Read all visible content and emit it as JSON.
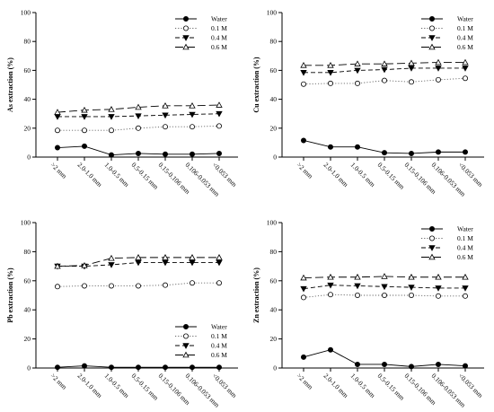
{
  "chart_data": [
    {
      "type": "line",
      "panel": "top-left",
      "ylabel": "As extraction (%)",
      "xlabel": "",
      "ylim": [
        0,
        100
      ],
      "yticks": [
        "0",
        "20",
        "40",
        "60",
        "80",
        "100"
      ],
      "categories": [
        ">2 mm",
        "2.0-1.0 mm",
        "1.0-0.5 mm",
        "0.5-0.15 mm",
        "0.15-0.106 mm",
        "0.106-0.053 mm",
        "<0.053 mm"
      ],
      "legend_position": "top-right",
      "series": [
        {
          "name": "Water",
          "marker": "filled-circle",
          "line": "solid",
          "values": [
            6.5,
            7.5,
            1.5,
            2.5,
            2.0,
            2.0,
            2.5
          ]
        },
        {
          "name": "0.1 M",
          "marker": "open-circle",
          "line": "dotted",
          "values": [
            18.5,
            18.5,
            18.5,
            20.0,
            21.0,
            21.0,
            21.5
          ]
        },
        {
          "name": "0.4 M",
          "marker": "filled-triangle-down",
          "line": "dashed",
          "values": [
            28.0,
            28.0,
            28.0,
            28.5,
            29.0,
            29.5,
            30.0
          ]
        },
        {
          "name": "0.6 M",
          "marker": "open-triangle-up",
          "line": "long-dash",
          "values": [
            31.0,
            32.5,
            33.0,
            34.5,
            35.5,
            35.5,
            36.0
          ]
        }
      ]
    },
    {
      "type": "line",
      "panel": "top-right",
      "ylabel": "Cu extraction (%)",
      "xlabel": "",
      "ylim": [
        0,
        100
      ],
      "yticks": [
        "0",
        "20",
        "40",
        "60",
        "80",
        "100"
      ],
      "categories": [
        ">2 mm",
        "2.0-1.0 mm",
        "1.0-0.5 mm",
        "0.5-0.15 mm",
        "0.15-0.106 mm",
        "0.106-0.053 mm",
        "<0.053 mm"
      ],
      "legend_position": "top-right",
      "series": [
        {
          "name": "Water",
          "marker": "filled-circle",
          "line": "solid",
          "values": [
            11.5,
            7.0,
            7.0,
            3.0,
            2.5,
            3.5,
            3.5
          ]
        },
        {
          "name": "0.1 M",
          "marker": "open-circle",
          "line": "dotted",
          "values": [
            50.5,
            51.0,
            51.0,
            53.0,
            52.0,
            53.5,
            54.5
          ]
        },
        {
          "name": "0.4 M",
          "marker": "filled-triangle-down",
          "line": "dashed",
          "values": [
            58.5,
            58.5,
            60.0,
            60.5,
            61.5,
            61.5,
            61.5
          ]
        },
        {
          "name": "0.6 M",
          "marker": "open-triangle-up",
          "line": "long-dash",
          "values": [
            63.5,
            63.5,
            64.5,
            64.5,
            65.0,
            65.5,
            65.5
          ]
        }
      ]
    },
    {
      "type": "line",
      "panel": "bottom-left",
      "ylabel": "Pb extraction (%)",
      "xlabel": "",
      "ylim": [
        0,
        100
      ],
      "yticks": [
        "0",
        "20",
        "40",
        "60",
        "80",
        "100"
      ],
      "categories": [
        ">2 mm",
        "2.0-1.0 mm",
        "1.0-0.5 mm",
        "0.5-0.15 mm",
        "0.15-0.106 mm",
        "0.106-0.053 mm",
        "<0.053 mm"
      ],
      "legend_position": "bottom-right",
      "series": [
        {
          "name": "Water",
          "marker": "filled-circle",
          "line": "solid",
          "values": [
            0.5,
            1.5,
            0.5,
            0.5,
            0.5,
            0.5,
            0.5
          ]
        },
        {
          "name": "0.1 M",
          "marker": "open-circle",
          "line": "dotted",
          "values": [
            56.0,
            56.5,
            56.5,
            56.5,
            57.0,
            58.5,
            58.5
          ]
        },
        {
          "name": "0.4 M",
          "marker": "filled-triangle-down",
          "line": "dashed",
          "values": [
            70.0,
            70.0,
            71.0,
            72.5,
            72.5,
            72.5,
            72.5
          ]
        },
        {
          "name": "0.6 M",
          "marker": "open-triangle-up",
          "line": "long-dash",
          "values": [
            70.0,
            70.5,
            75.5,
            76.0,
            76.0,
            76.0,
            76.0
          ]
        }
      ]
    },
    {
      "type": "line",
      "panel": "bottom-right",
      "ylabel": "Zn extraction (%)",
      "xlabel": "",
      "ylim": [
        0,
        100
      ],
      "yticks": [
        "0",
        "20",
        "40",
        "60",
        "80",
        "100"
      ],
      "categories": [
        ">2 mm",
        "2.0-1.0 mm",
        "1.0-0.5 mm",
        "0.5-0.15 mm",
        "0.15-0.106 mm",
        "0.106-0.053 mm",
        "<0.053 mm"
      ],
      "legend_position": "top-right",
      "series": [
        {
          "name": "Water",
          "marker": "filled-circle",
          "line": "solid",
          "values": [
            7.5,
            12.5,
            2.5,
            2.5,
            1.0,
            2.5,
            1.5
          ]
        },
        {
          "name": "0.1 M",
          "marker": "open-circle",
          "line": "dotted",
          "values": [
            48.5,
            50.5,
            50.0,
            50.0,
            50.0,
            49.5,
            49.5
          ]
        },
        {
          "name": "0.4 M",
          "marker": "filled-triangle-down",
          "line": "dashed",
          "values": [
            54.5,
            57.0,
            56.5,
            56.0,
            55.5,
            55.0,
            55.0
          ]
        },
        {
          "name": "0.6 M",
          "marker": "open-triangle-up",
          "line": "long-dash",
          "values": [
            62.0,
            62.5,
            62.5,
            63.0,
            62.5,
            62.5,
            62.5
          ]
        }
      ]
    }
  ]
}
